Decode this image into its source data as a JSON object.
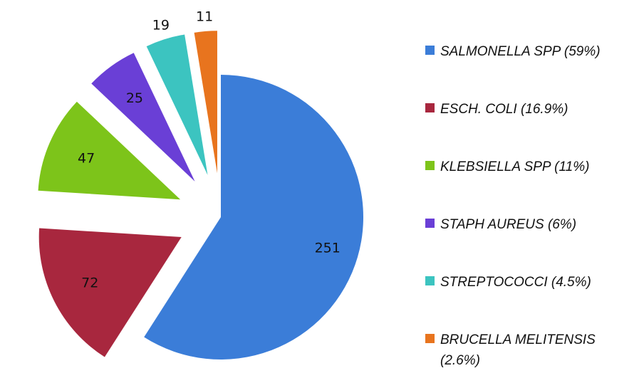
{
  "chart_data": {
    "type": "pie",
    "categories": [
      "SALMONELLA SPP (59%)",
      "ESCH. COLI (16.9%)",
      "KLEBSIELLA SPP (11%)",
      "STAPH AUREUS (6%)",
      "STREPTOCOCCI (4.5%)",
      "BRUCELLA MELITENSIS (2.6%)"
    ],
    "values": [
      251,
      72,
      47,
      25,
      19,
      11
    ],
    "colors": [
      "#3b7dd8",
      "#a8273e",
      "#7dc41a",
      "#6a3fd6",
      "#3cc4c0",
      "#e8741e"
    ],
    "legend": "right"
  }
}
